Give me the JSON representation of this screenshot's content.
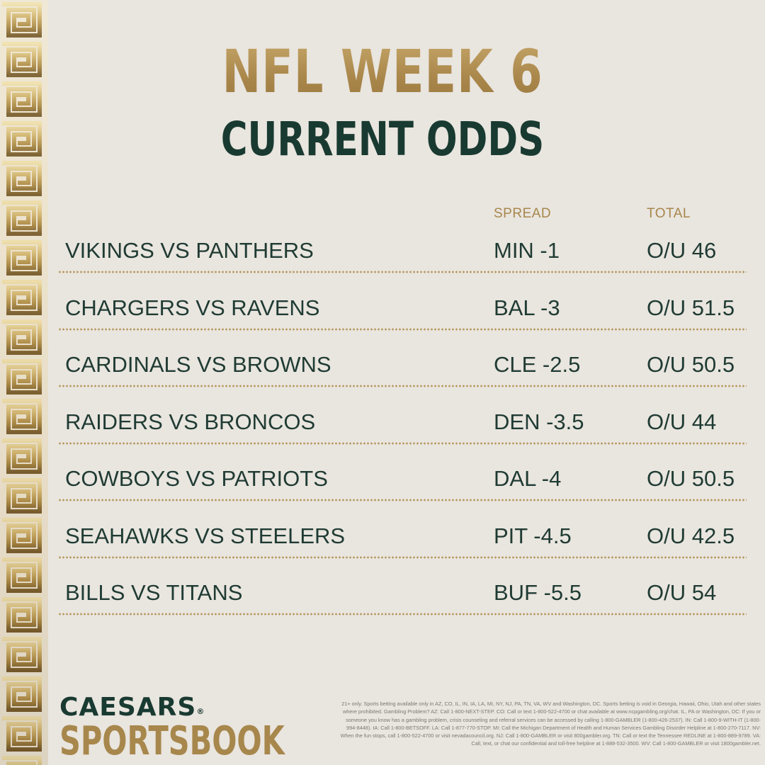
{
  "header": {
    "title": "NFL WEEK 6",
    "subtitle": "CURRENT ODDS"
  },
  "table": {
    "columns": {
      "spread": "SPREAD",
      "total": "TOTAL"
    },
    "rows": [
      {
        "matchup": "VIKINGS VS PANTHERS",
        "spread": "MIN -1",
        "total": "O/U 46"
      },
      {
        "matchup": "CHARGERS VS RAVENS",
        "spread": "BAL -3",
        "total": "O/U 51.5"
      },
      {
        "matchup": "CARDINALS VS BROWNS",
        "spread": "CLE -2.5",
        "total": "O/U 50.5"
      },
      {
        "matchup": "RAIDERS VS BRONCOS",
        "spread": "DEN -3.5",
        "total": "O/U 44"
      },
      {
        "matchup": "COWBOYS VS PATRIOTS",
        "spread": "DAL -4",
        "total": "O/U 50.5"
      },
      {
        "matchup": "SEAHAWKS VS STEELERS",
        "spread": "PIT -4.5",
        "total": "O/U 42.5"
      },
      {
        "matchup": "BILLS VS TITANS",
        "spread": "BUF -5.5",
        "total": "O/U 54"
      }
    ]
  },
  "brand": {
    "line1": "CAESARS",
    "registered": "®",
    "line2": "SPORTSBOOK"
  },
  "disclaimer": "21+ only. Sports betting available only in AZ, CO, IL, IN, IA, LA, MI, NY, NJ, PA, TN, VA, WV and Washington, DC. Sports betting is void in Georgia, Hawaii, Ohio, Utah and other states where prohibited. Gambling Problem? AZ: Call 1-800-NEXT-STEP. CO: Call or text 1-800-522-4700 or chat available at www.ncpgambling.org/chat. IL, PA or Washington, DC: If you or someone you know has a gambling problem, crisis counseling and referral services can be accessed by calling 1-800-GAMBLER (1-800-426-2537). IN: Call 1-800-9-WITH-IT (1-800-994-8448). IA: Call 1-800-BETSOFF. LA: Call 1-877-770-STOP. MI: Call the Michigan Department of Health and Human Services Gambling Disorder Helpline at 1-800-270-7117. NV: When the fun stops, call 1-800-522-4700 or visit nevadacouncil.org. NJ: Call 1-800-GAMBLER or visit 800gambler.org. TN: Call or text the Tennessee REDLINE at 1-800-889-9789. VA: Call, text, or chat our confidential and toll-free helpline at 1-888-532-3500. WV: Call 1-800-GAMBLER or visit 1800gambler.net.",
  "colors": {
    "background": "#e9e5df",
    "gold": "#a7874c",
    "green": "#193a31"
  },
  "decor": {
    "border": "greek-key-border"
  }
}
